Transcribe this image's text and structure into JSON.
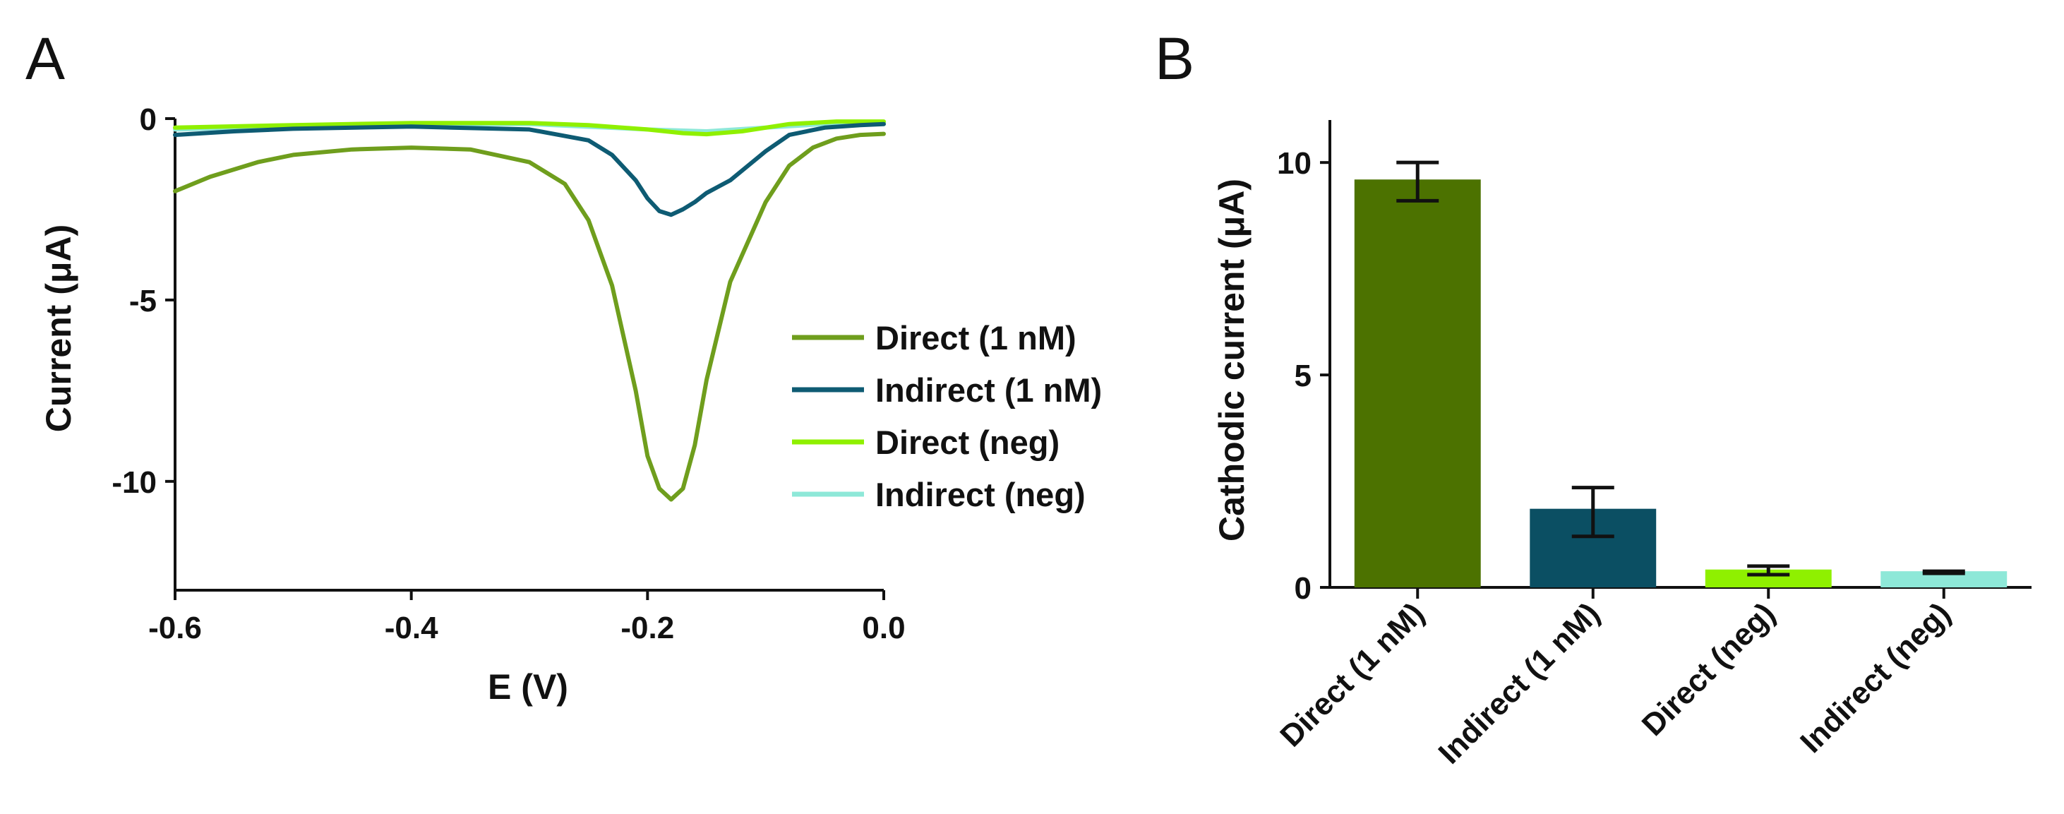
{
  "chart_data": [
    {
      "panel": "A",
      "type": "line",
      "title": "",
      "xlabel": "E (V)",
      "ylabel": "Current (μA)",
      "xlim": [
        -0.6,
        0.0
      ],
      "ylim": [
        -13,
        0
      ],
      "xticks": [
        -0.6,
        -0.4,
        -0.2,
        0.0
      ],
      "xtick_labels": [
        "-0.6",
        "-0.4",
        "-0.2",
        "0.0"
      ],
      "yticks": [
        0,
        -5,
        -10
      ],
      "ytick_labels": [
        "0",
        "-5",
        "-10"
      ],
      "legend_position": "center-right",
      "series": [
        {
          "name": "Direct (1 nM)",
          "color": "#6f9e1d",
          "x": [
            -0.6,
            -0.57,
            -0.53,
            -0.5,
            -0.45,
            -0.4,
            -0.35,
            -0.3,
            -0.27,
            -0.25,
            -0.23,
            -0.21,
            -0.2,
            -0.19,
            -0.18,
            -0.17,
            -0.16,
            -0.15,
            -0.13,
            -0.1,
            -0.08,
            -0.06,
            -0.04,
            -0.02,
            0.0
          ],
          "y": [
            -2.0,
            -1.6,
            -1.2,
            -1.0,
            -0.85,
            -0.8,
            -0.85,
            -1.2,
            -1.8,
            -2.8,
            -4.6,
            -7.5,
            -9.3,
            -10.2,
            -10.5,
            -10.2,
            -9.0,
            -7.2,
            -4.5,
            -2.3,
            -1.3,
            -0.8,
            -0.55,
            -0.45,
            -0.42
          ]
        },
        {
          "name": "Indirect (1 nM)",
          "color": "#0e5b73",
          "x": [
            -0.6,
            -0.55,
            -0.5,
            -0.4,
            -0.3,
            -0.25,
            -0.23,
            -0.21,
            -0.2,
            -0.19,
            -0.18,
            -0.17,
            -0.16,
            -0.15,
            -0.13,
            -0.1,
            -0.08,
            -0.05,
            -0.02,
            0.0
          ],
          "y": [
            -0.45,
            -0.35,
            -0.28,
            -0.22,
            -0.3,
            -0.6,
            -1.0,
            -1.7,
            -2.2,
            -2.55,
            -2.65,
            -2.5,
            -2.3,
            -2.05,
            -1.7,
            -0.9,
            -0.45,
            -0.25,
            -0.18,
            -0.15
          ]
        },
        {
          "name": "Direct (neg)",
          "color": "#8ff000",
          "x": [
            -0.6,
            -0.5,
            -0.4,
            -0.3,
            -0.25,
            -0.2,
            -0.17,
            -0.15,
            -0.12,
            -0.08,
            -0.04,
            0.0
          ],
          "y": [
            -0.25,
            -0.18,
            -0.12,
            -0.12,
            -0.18,
            -0.3,
            -0.4,
            -0.43,
            -0.35,
            -0.15,
            -0.08,
            -0.08
          ]
        },
        {
          "name": "Indirect (neg)",
          "color": "#8ee8d8",
          "x": [
            -0.6,
            -0.5,
            -0.4,
            -0.3,
            -0.2,
            -0.15,
            -0.1,
            -0.05,
            0.0
          ],
          "y": [
            -0.3,
            -0.2,
            -0.15,
            -0.15,
            -0.3,
            -0.35,
            -0.25,
            -0.15,
            -0.1
          ]
        }
      ]
    },
    {
      "panel": "B",
      "type": "bar",
      "title": "",
      "xlabel": "",
      "ylabel": "Cathodic current (μA)",
      "ylim": [
        0,
        11
      ],
      "yticks": [
        0,
        5,
        10
      ],
      "ytick_labels": [
        "0",
        "5",
        "10"
      ],
      "categories": [
        "Direct (1 nM)",
        "Indirect (1 nM)",
        "Direct (neg)",
        "Indirect (neg)"
      ],
      "values": [
        9.6,
        1.85,
        0.42,
        0.38
      ],
      "error_low": [
        9.1,
        1.2,
        0.3,
        0.33
      ],
      "error_high": [
        10.0,
        2.35,
        0.5,
        0.38
      ],
      "colors": [
        "#4c7200",
        "#0b4f63",
        "#8ff000",
        "#8ee8d8"
      ]
    }
  ]
}
